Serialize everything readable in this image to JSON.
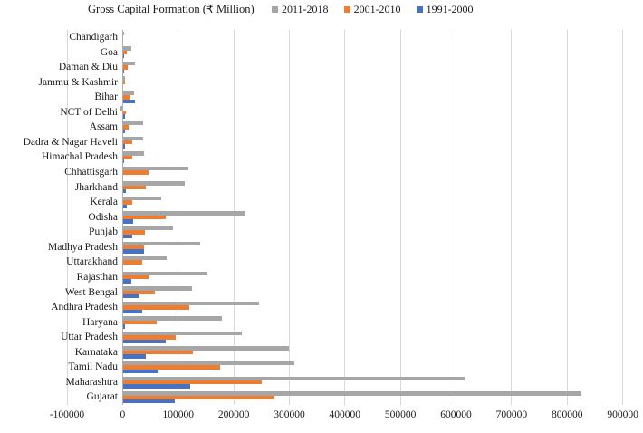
{
  "chart": {
    "title": "Gross Capital Formation (₹ Million)"
  },
  "colors": {
    "series_gray": "#A6A6A6",
    "series_orange": "#ED7D31",
    "series_blue": "#4472C4",
    "gridline": "#D9D9D9",
    "axis_line": "#AEAEAE",
    "text": "#1A1A1A"
  },
  "chart_data": {
    "type": "bar",
    "orientation": "horizontal",
    "title": "Gross Capital Formation (₹ Million)",
    "xlabel": "",
    "ylabel": "",
    "xlim": [
      -100000,
      900000
    ],
    "xticks": [
      -100000,
      0,
      100000,
      200000,
      300000,
      400000,
      500000,
      600000,
      700000,
      800000,
      900000
    ],
    "grid": "vertical",
    "legend_position": "top",
    "categories": [
      "Chandigarh",
      "Goa",
      "Daman & Diu",
      "Jammu & Kashmir",
      "Bihar",
      "NCT of Delhi",
      "Assam",
      "Dadra & Nagar Haveli",
      "Himachal Pradesh",
      "Chhattisgarh",
      "Jharkhand",
      "Kerala",
      "Odisha",
      "Punjab",
      "Madhya Pradesh",
      "Uttarakhand",
      "Rajasthan",
      "West Bengal",
      "Andhra Pradesh",
      "Haryana",
      "Uttar Pradesh",
      "Karnataka",
      "Tamil Nadu",
      "Maharashtra",
      "Gujarat"
    ],
    "series": [
      {
        "name": "2011-2018",
        "color": "#A6A6A6",
        "values": [
          3000,
          16000,
          22500,
          5000,
          21000,
          -4000,
          36500,
          37000,
          38500,
          118000,
          112000,
          69000,
          221000,
          90000,
          139000,
          78500,
          152000,
          125000,
          245000,
          179000,
          214000,
          299000,
          309000,
          615000,
          825000
        ]
      },
      {
        "name": "2001-2010",
        "color": "#ED7D31",
        "values": [
          800,
          8000,
          10000,
          3500,
          13500,
          6500,
          10500,
          18000,
          17000,
          47000,
          41500,
          17500,
          77000,
          40000,
          38000,
          36000,
          46500,
          58000,
          120000,
          61500,
          96000,
          127000,
          175000,
          251000,
          273000
        ]
      },
      {
        "name": "1991-2000",
        "color": "#4472C4",
        "values": [
          400,
          3000,
          2000,
          1000,
          23000,
          5000,
          4000,
          4000,
          3000,
          1500,
          5500,
          8000,
          18500,
          17000,
          39000,
          1200,
          15000,
          30500,
          36000,
          3500,
          78000,
          41000,
          65000,
          121000,
          94000
        ]
      }
    ]
  }
}
